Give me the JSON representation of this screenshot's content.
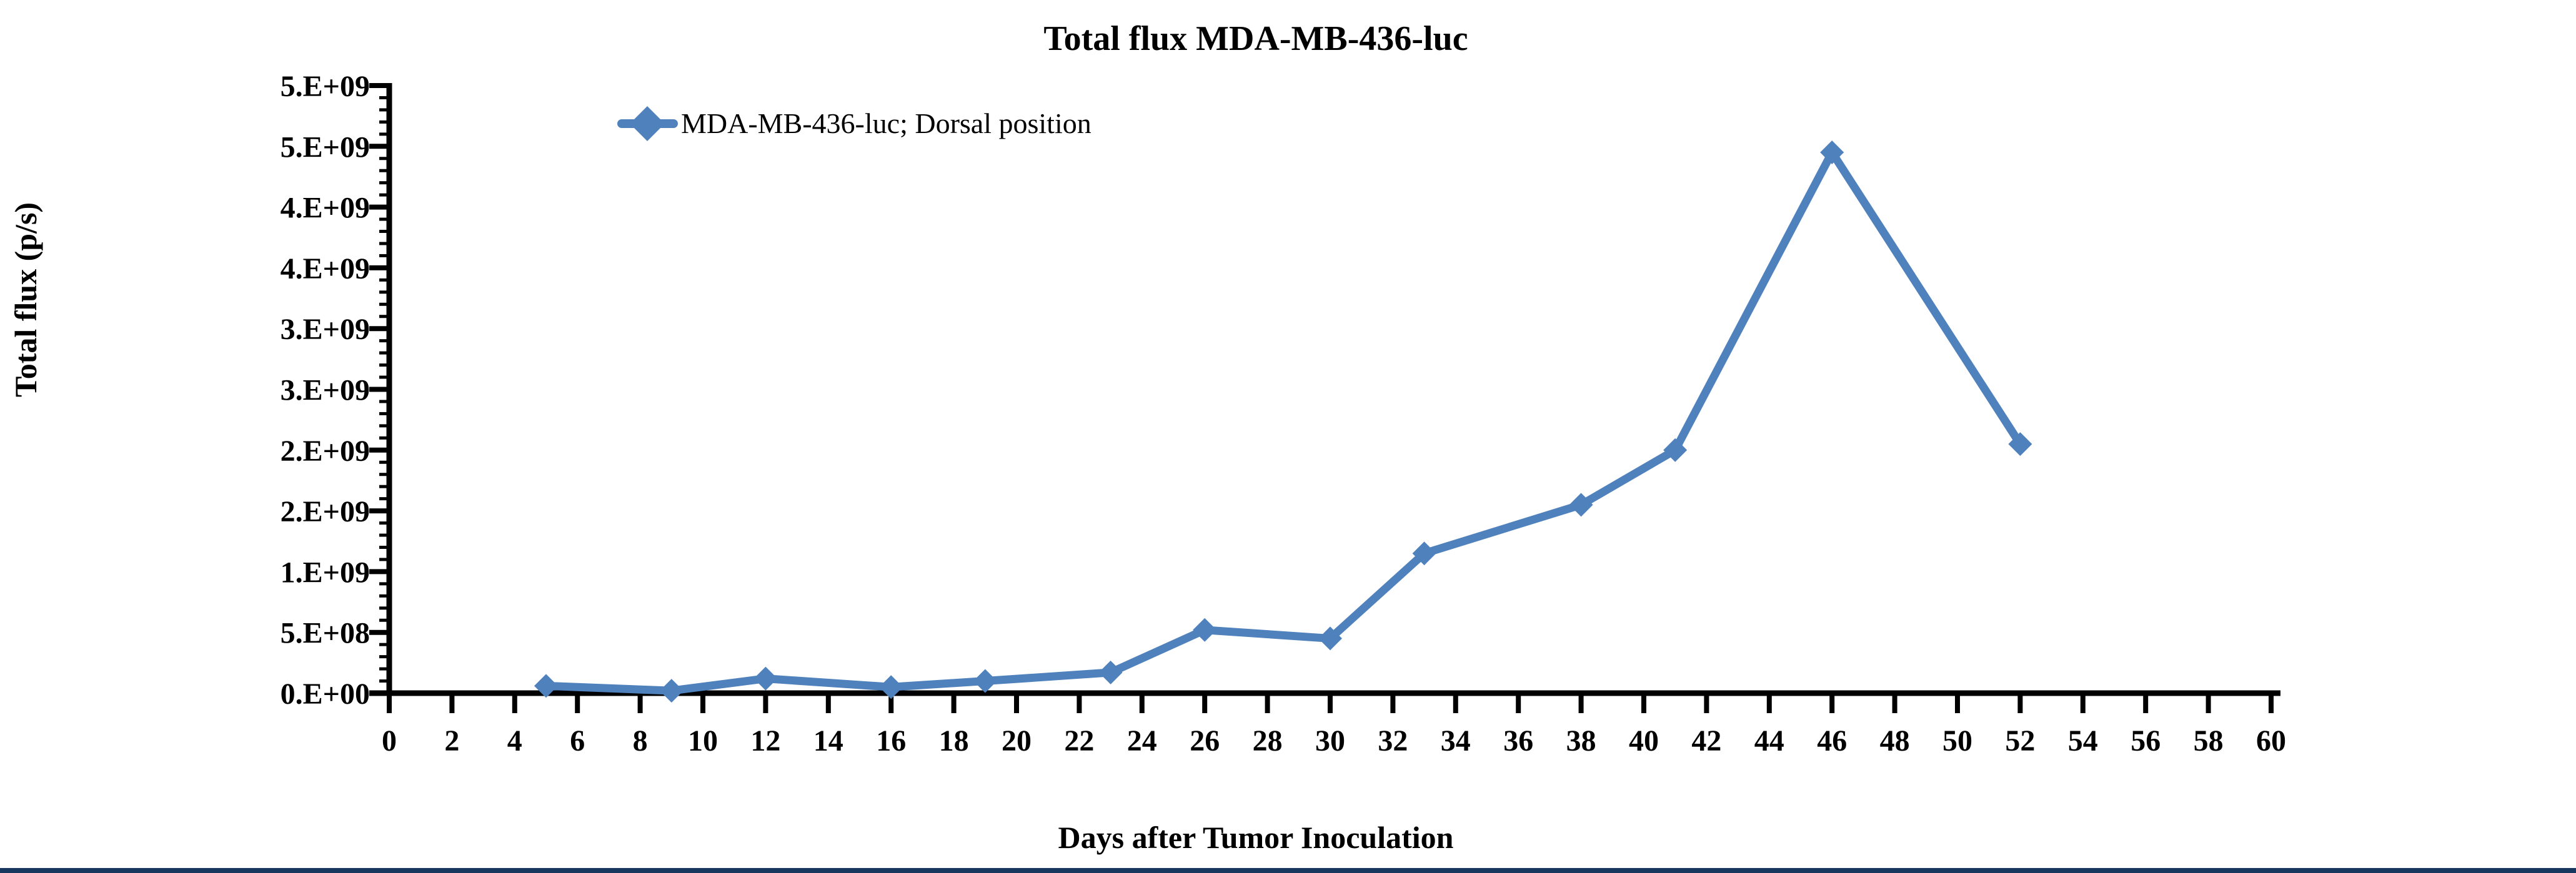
{
  "page": {
    "background": "#ffffff",
    "bottom_bar_color": "#17375E"
  },
  "chart_data": {
    "type": "line",
    "title": "Total flux MDA-MB-436-luc",
    "xlabel": "Days after Tumor Inoculation",
    "ylabel": "Total flux (p/s)",
    "grid": false,
    "legend_position": "top-left-inside",
    "legend": [
      {
        "label": "MDA-MB-436-luc; Dorsal position",
        "color": "#4f81bd",
        "marker": "diamond"
      }
    ],
    "series": [
      {
        "name": "MDA-MB-436-luc; Dorsal position",
        "color": "#4f81bd",
        "marker": "diamond",
        "x": [
          5,
          9,
          12,
          16,
          19,
          23,
          26,
          30,
          33,
          38,
          41,
          46,
          52
        ],
        "y": [
          60000000,
          20000000,
          120000000,
          50000000,
          100000000,
          170000000,
          520000000,
          450000000,
          1150000000,
          1550000000,
          2000000000,
          4450000000,
          2050000000
        ]
      }
    ],
    "x_axis": {
      "min": 0,
      "max": 60,
      "tick_step": 2,
      "tick_labels": [
        "0",
        "2",
        "4",
        "6",
        "8",
        "10",
        "12",
        "14",
        "16",
        "18",
        "20",
        "22",
        "24",
        "26",
        "28",
        "30",
        "32",
        "34",
        "36",
        "38",
        "40",
        "42",
        "44",
        "46",
        "48",
        "50",
        "52",
        "54",
        "56",
        "58",
        "60"
      ]
    },
    "y_axis": {
      "min": 0,
      "max": 5000000000,
      "major_step": 500000000,
      "minor_step": 100000000,
      "tick_labels_bottom_to_top": [
        "0.E+00",
        "5.E+08",
        "1.E+09",
        "2.E+09",
        "2.E+09",
        "3.E+09",
        "3.E+09",
        "4.E+09",
        "4.E+09",
        "5.E+09",
        "5.E+09"
      ]
    }
  }
}
